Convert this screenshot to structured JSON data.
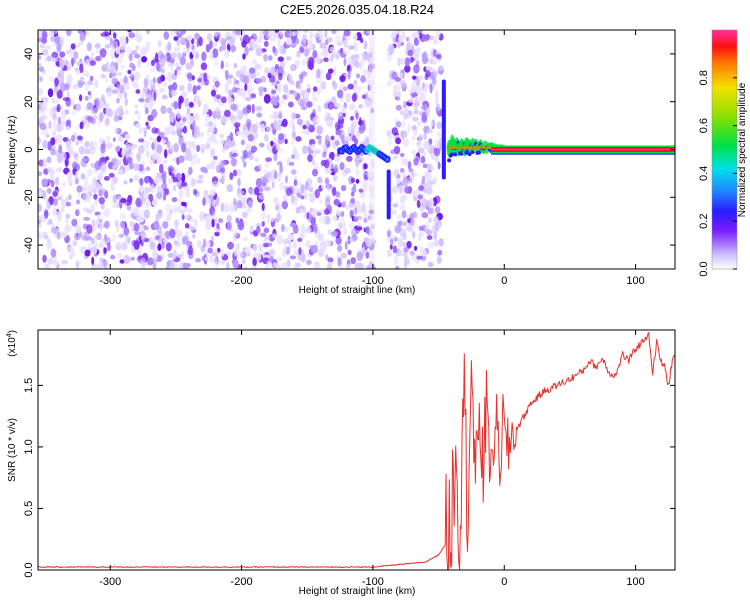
{
  "chart_data": [
    {
      "type": "heatmap",
      "title": "C2E5.2026.035.04.18.R24",
      "xlabel": "Height of straight line (km)",
      "ylabel": "Frequency (Hz)",
      "xlim": [
        -355,
        130
      ],
      "ylim": [
        -50,
        50
      ],
      "xticks": [
        -300,
        -200,
        -100,
        0,
        100
      ],
      "xtick_labels": [
        "-300",
        "-200",
        "-100",
        "0",
        "100"
      ],
      "yticks": [
        -40,
        -20,
        0,
        20,
        40
      ],
      "ytick_labels": [
        "-40",
        "-20",
        "0",
        "20",
        "40"
      ],
      "colorbar": {
        "label": "Normalized spectral amplitude",
        "range": [
          0,
          1
        ],
        "ticks": [
          0.0,
          0.2,
          0.4,
          0.6,
          0.8
        ],
        "tick_labels": [
          "0.0",
          "0.2",
          "0.4",
          "0.6",
          "0.8"
        ]
      },
      "regions": [
        {
          "name": "noise",
          "x_range": [
            -355,
            -48
          ],
          "freq_range": [
            -50,
            50
          ],
          "amplitude": "low",
          "gap_x": [
            -100,
            -88
          ]
        },
        {
          "name": "signal-trace",
          "x_range": [
            -125,
            -88
          ],
          "freq": 0,
          "amplitude": 0.4
        },
        {
          "name": "carrier",
          "x_range": [
            -42,
            130
          ],
          "freq": 0,
          "amplitude": 1.0
        }
      ]
    },
    {
      "type": "line",
      "title": "",
      "xlabel": "Height of straight line (km)",
      "ylabel": "SNR (10 * v/v)",
      "scale_label": "(x10",
      "scale_exponent": "4",
      "scale_suffix": ")",
      "xlim": [
        -355,
        130
      ],
      "ylim": [
        0,
        1.95
      ],
      "xticks": [
        -300,
        -200,
        -100,
        0,
        100
      ],
      "xtick_labels": [
        "-300",
        "-200",
        "-100",
        "0",
        "100"
      ],
      "yticks": [
        0.0,
        0.5,
        1.0,
        1.5
      ],
      "ytick_labels": [
        "0.0",
        "0.5",
        "1.0",
        "1.5"
      ],
      "series": [
        {
          "name": "SNR",
          "color": "#e8302c",
          "x": [
            -355,
            -300,
            -200,
            -120,
            -100,
            -80,
            -60,
            -50,
            -45,
            -40,
            -37,
            -34,
            -31,
            -28,
            -25,
            -22,
            -19,
            -16,
            -13,
            -10,
            -7,
            -4,
            -1,
            2,
            6,
            10,
            15,
            20,
            30,
            40,
            50,
            60,
            65,
            70,
            75,
            80,
            85,
            90,
            95,
            100,
            105,
            110,
            113,
            116,
            119,
            122,
            125,
            128,
            130
          ],
          "y": [
            0.02,
            0.02,
            0.02,
            0.02,
            0.02,
            0.04,
            0.06,
            0.12,
            0.2,
            0.45,
            1.1,
            0.3,
            1.6,
            0.5,
            1.7,
            0.55,
            1.4,
            0.7,
            1.55,
            0.65,
            1.3,
            0.85,
            1.2,
            0.95,
            1.1,
            1.15,
            1.25,
            1.35,
            1.45,
            1.5,
            1.55,
            1.62,
            1.7,
            1.65,
            1.72,
            1.6,
            1.58,
            1.75,
            1.7,
            1.8,
            1.85,
            1.93,
            1.6,
            1.85,
            1.7,
            1.65,
            1.5,
            1.7,
            1.75
          ]
        }
      ]
    }
  ]
}
